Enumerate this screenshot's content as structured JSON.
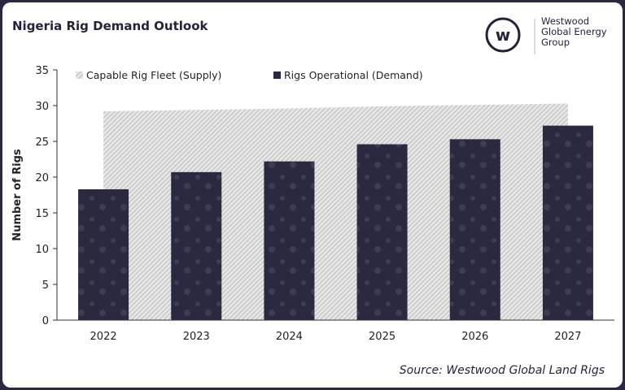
{
  "title": "Nigeria Rig Demand Outlook",
  "logo": {
    "line1": "Westwood",
    "line2": "Global Energy",
    "line3": "Group"
  },
  "source": "Source: Westwood Global Land Rigs",
  "colors": {
    "demand": "#2b2940",
    "supply_hatch": "#a9a9a9",
    "frame": "#2b2940"
  },
  "chart_data": {
    "type": "bar",
    "categories": [
      "2022",
      "2023",
      "2024",
      "2025",
      "2026",
      "2027"
    ],
    "series": [
      {
        "name": "Capable Rig Fleet (Supply)",
        "kind": "area",
        "values": [
          29.2,
          29.4,
          29.6,
          29.9,
          30.1,
          30.3
        ]
      },
      {
        "name": "Rigs Operational (Demand)",
        "kind": "bar",
        "values": [
          18.3,
          20.7,
          22.2,
          24.6,
          25.3,
          27.2
        ]
      }
    ],
    "ylabel": "Number of Rigs",
    "xlabel": "",
    "ylim": [
      0,
      35
    ],
    "yticks": [
      0,
      5,
      10,
      15,
      20,
      25,
      30,
      35
    ],
    "legend": "top",
    "grid": false
  }
}
